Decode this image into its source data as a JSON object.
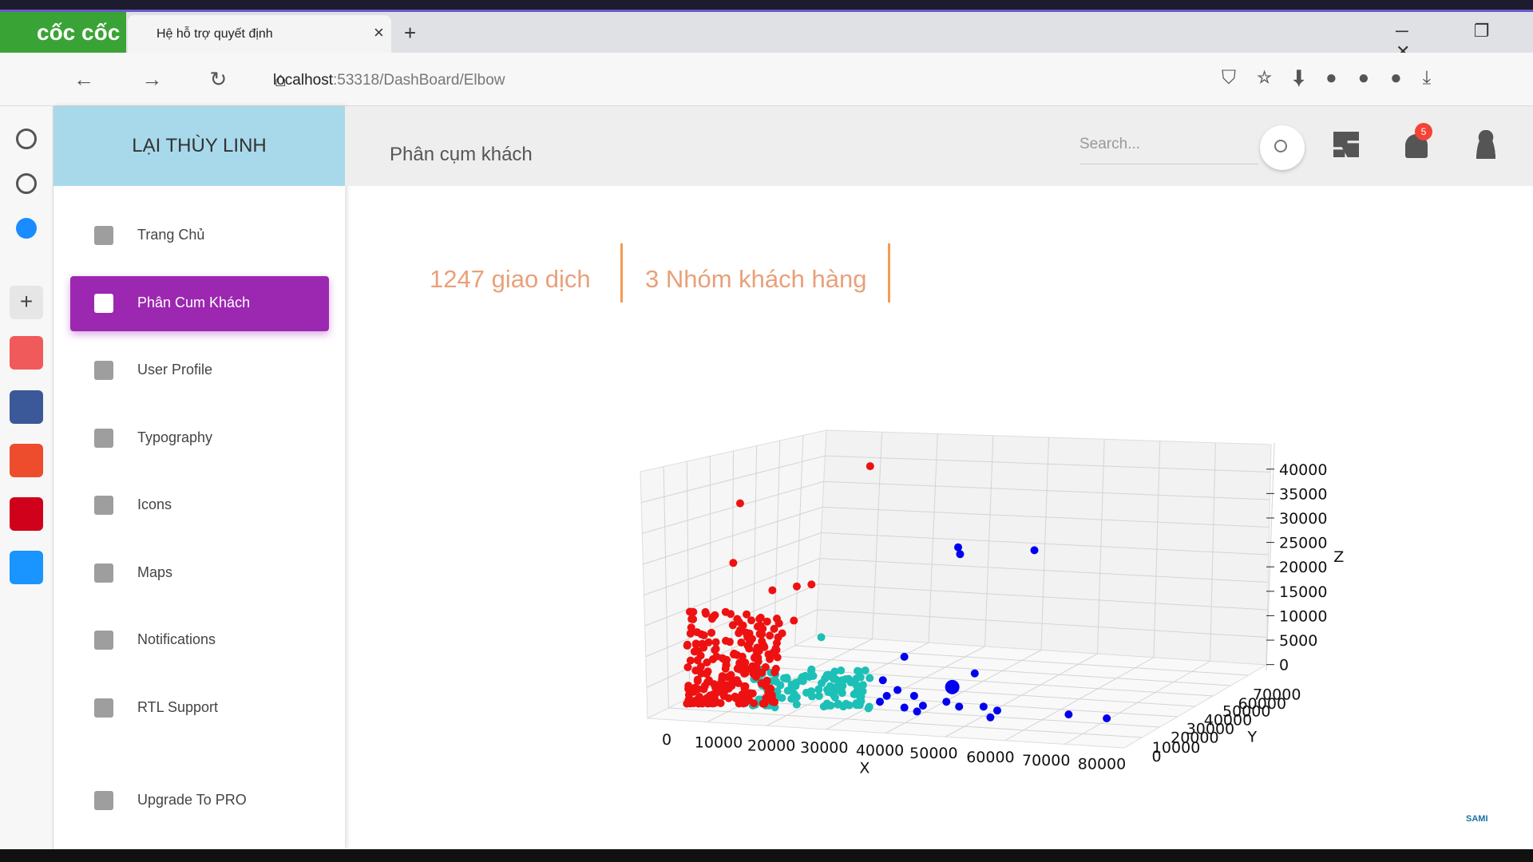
{
  "browser": {
    "brand": "cốc cốc",
    "tab_title": "Hệ hỗ trợ quyết định",
    "url_host": "localhost",
    "url_path": ":53318/DashBoard/Elbow"
  },
  "sidebar": {
    "user_name": "LẠI THÙY LINH",
    "menu": [
      "Trang Chủ",
      "Phân Cum Khách",
      "User Profile",
      "Typography",
      "Icons",
      "Maps",
      "Notifications",
      "RTL Support",
      "Upgrade To PRO"
    ]
  },
  "header": {
    "title": "Phân cụm khách",
    "search_placeholder": "Search...",
    "notification_count": 5
  },
  "stats": [
    "1247 giao dịch",
    "3 Nhóm khách hàng"
  ],
  "plot": {
    "x_label": "X",
    "y_label": "Y",
    "z_label": "Z",
    "x_ticks": [
      0,
      10000,
      20000,
      30000,
      40000,
      50000,
      60000,
      70000,
      80000
    ],
    "y_ticks": [
      0,
      10000,
      20000,
      30000,
      40000,
      50000,
      60000,
      70000
    ],
    "z_ticks": [
      0,
      5000,
      10000,
      15000,
      20000,
      25000,
      30000,
      35000,
      40000
    ]
  },
  "footer_logo": "SAMI"
}
